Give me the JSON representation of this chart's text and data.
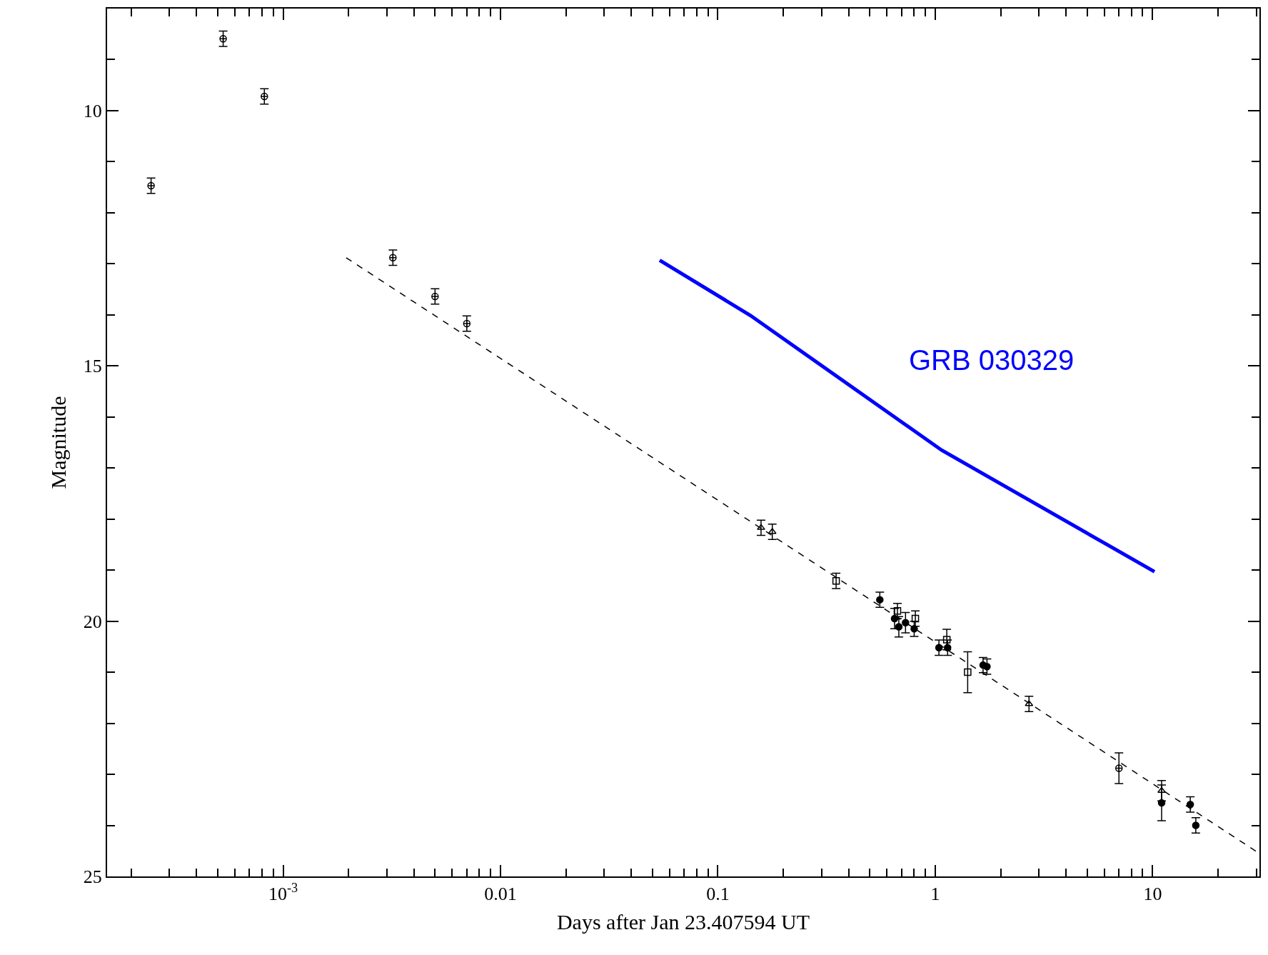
{
  "chart_data": {
    "type": "scatter",
    "xlabel": "Days after Jan 23.407594 UT",
    "ylabel": "Magnitude",
    "log": "x",
    "xlim": [
      0.000155,
      31
    ],
    "ylim": [
      25,
      8
    ],
    "xticks": [
      {
        "value": 0.0002,
        "label": null
      },
      {
        "value": 0.0003,
        "label": null
      },
      {
        "value": 0.0004,
        "label": null
      },
      {
        "value": 0.0005,
        "label": null
      },
      {
        "value": 0.0006,
        "label": null
      },
      {
        "value": 0.0007,
        "label": null
      },
      {
        "value": 0.0008,
        "label": null
      },
      {
        "value": 0.0009,
        "label": null
      },
      {
        "value": 0.001,
        "label": "10$^{-3}$"
      },
      {
        "value": 0.002,
        "label": null
      },
      {
        "value": 0.003,
        "label": null
      },
      {
        "value": 0.004,
        "label": null
      },
      {
        "value": 0.005,
        "label": null
      },
      {
        "value": 0.006,
        "label": null
      },
      {
        "value": 0.007,
        "label": null
      },
      {
        "value": 0.008,
        "label": null
      },
      {
        "value": 0.009,
        "label": null
      },
      0.01,
      {
        "value": 0.02,
        "label": null
      },
      {
        "value": 0.03,
        "label": null
      },
      {
        "value": 0.04,
        "label": null
      },
      {
        "value": 0.05,
        "label": null
      },
      {
        "value": 0.06,
        "label": null
      },
      {
        "value": 0.07,
        "label": null
      },
      {
        "value": 0.08,
        "label": null
      },
      {
        "value": 0.09,
        "label": null
      },
      0.1,
      {
        "value": 0.2,
        "label": null
      },
      {
        "value": 0.3,
        "label": null
      },
      {
        "value": 0.4,
        "label": null
      },
      {
        "value": 0.5,
        "label": null
      },
      {
        "value": 0.6,
        "label": null
      },
      {
        "value": 0.7,
        "label": null
      },
      {
        "value": 0.8,
        "label": null
      },
      {
        "value": 0.9,
        "label": null
      },
      1,
      {
        "value": 2,
        "label": null
      },
      {
        "value": 3,
        "label": null
      },
      {
        "value": 4,
        "label": null
      },
      {
        "value": 5,
        "label": null
      },
      {
        "value": 6,
        "label": null
      },
      {
        "value": 7,
        "label": null
      },
      {
        "value": 8,
        "label": null
      },
      {
        "value": 9,
        "label": null
      },
      10,
      {
        "value": 20,
        "label": null
      },
      {
        "value": 30,
        "label": null
      }
    ],
    "yticks": [
      {
        "value": 9,
        "label": null
      },
      10,
      {
        "value": 11,
        "label": null
      },
      {
        "value": 12,
        "label": null
      },
      {
        "value": 13,
        "label": null
      },
      {
        "value": 14,
        "label": null
      },
      15,
      {
        "value": 16,
        "label": null
      },
      {
        "value": 17,
        "label": null
      },
      {
        "value": 18,
        "label": null
      },
      {
        "value": 19,
        "label": null
      },
      20,
      {
        "value": 21,
        "label": null
      },
      {
        "value": 22,
        "label": null
      },
      {
        "value": 23,
        "label": null
      },
      {
        "value": 24,
        "label": null
      },
      25
    ],
    "annotations": [
      "GRB 030329"
    ],
    "series": [
      {
        "color": "#000000",
        "marker": "cross",
        "x": [
          0.000247,
          0.00053,
          0.00082,
          0.0032,
          0.005,
          0.007,
          7.0
        ],
        "values": [
          11.47,
          8.59,
          9.72,
          12.88,
          13.64,
          14.17,
          22.88
        ],
        "errors": [
          0.15,
          0.15,
          0.15,
          0.15,
          0.15,
          0.15,
          0.3
        ]
      },
      {
        "color": "#000000",
        "marker": "circle",
        "x": [
          0.556,
          0.65,
          0.68,
          0.73,
          0.8,
          1.04,
          1.14,
          1.66,
          1.73,
          11.0,
          14.9,
          15.8
        ],
        "values": [
          19.58,
          19.95,
          20.11,
          20.03,
          20.15,
          20.52,
          20.52,
          20.86,
          20.89,
          23.56,
          23.59,
          24.0
        ],
        "errors": [
          0.15,
          0.2,
          0.2,
          0.2,
          0.15,
          0.15,
          0.15,
          0.15,
          0.15,
          0.35,
          0.15,
          0.15
        ]
      },
      {
        "color": "#000000",
        "marker": "square",
        "x": [
          0.35,
          0.67,
          0.81,
          1.41,
          1.13
        ],
        "values": [
          19.21,
          19.8,
          19.95,
          21.0,
          20.36
        ],
        "errors": [
          0.15,
          0.15,
          0.15,
          0.4,
          0.2
        ]
      },
      {
        "color": "#000000",
        "marker": "triangle",
        "x": [
          0.158,
          0.178,
          2.7,
          11.0
        ],
        "values": [
          18.17,
          18.25,
          21.62,
          23.32
        ],
        "errors": [
          0.15,
          0.15,
          0.15,
          0.2
        ]
      },
      {
        "type": "line",
        "color": "#000000",
        "line_style": "dashed",
        "marker": "none",
        "x": [
          0.00195,
          31
        ],
        "values": [
          12.88,
          24.55
        ]
      },
      {
        "type": "line",
        "color": "#0000ff",
        "line_style": "solid",
        "marker": "none",
        "x": [
          0.054,
          0.141,
          1.07,
          10.2
        ],
        "values": [
          12.93,
          14.01,
          16.65,
          19.03
        ]
      }
    ]
  }
}
